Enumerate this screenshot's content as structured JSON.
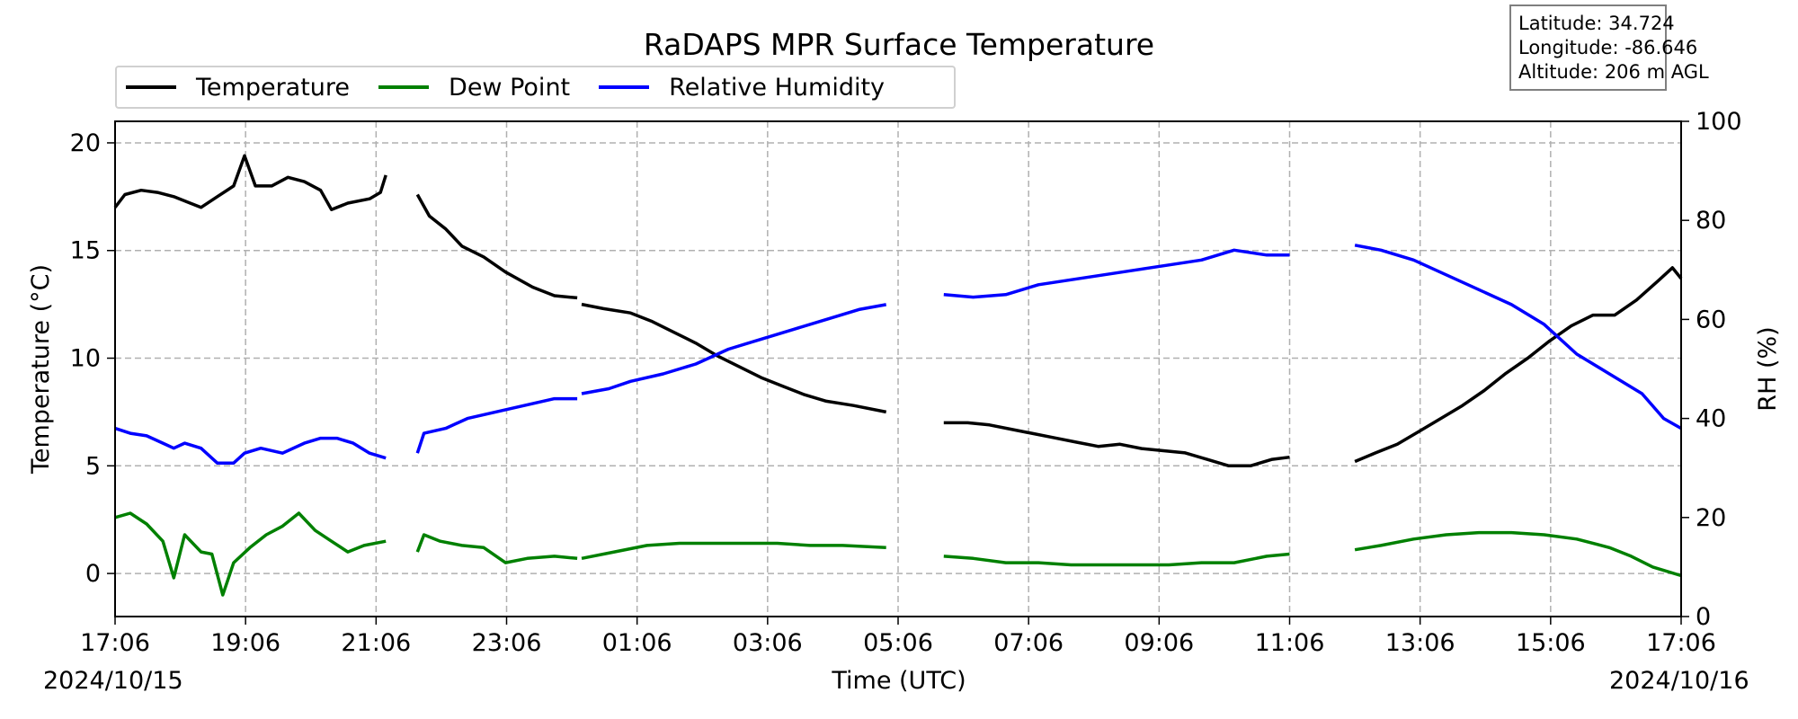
{
  "chart_data": {
    "type": "line",
    "title": "RaDAPS MPR Surface Temperature",
    "xlabel": "Time (UTC)",
    "ylabel_left": "Temperature (°C)",
    "ylabel_right": "RH (%)",
    "start_date": "2024/10/15",
    "end_date": "2024/10/16",
    "x_tick_labels": [
      "17:06",
      "19:06",
      "21:06",
      "23:06",
      "01:06",
      "03:06",
      "05:06",
      "07:06",
      "09:06",
      "11:06",
      "13:06",
      "15:06",
      "17:06"
    ],
    "xlim": [
      "2024/10/15 17:06",
      "2024/10/16 17:06"
    ],
    "ylim_left": [
      -2,
      21
    ],
    "ylim_right": [
      0,
      100
    ],
    "y_ticks_left": [
      "0",
      "5",
      "10",
      "15",
      "20"
    ],
    "y_ticks_right": [
      "0",
      "20",
      "40",
      "60",
      "80",
      "100"
    ],
    "grid": true,
    "legend_position": "top-left, above plot",
    "series": [
      {
        "name": "Temperature",
        "axis": "left",
        "color": "#000000",
        "segments": [
          [
            [
              "17:06",
              17.0
            ],
            [
              "17:15",
              17.6
            ],
            [
              "17:30",
              17.8
            ],
            [
              "17:45",
              17.7
            ],
            [
              "18:00",
              17.5
            ],
            [
              "18:15",
              17.2
            ],
            [
              "18:25",
              17.0
            ],
            [
              "18:40",
              17.5
            ],
            [
              "18:55",
              18.0
            ],
            [
              "19:05",
              19.4
            ],
            [
              "19:15",
              18.0
            ],
            [
              "19:30",
              18.0
            ],
            [
              "19:45",
              18.4
            ],
            [
              "20:00",
              18.2
            ],
            [
              "20:15",
              17.8
            ],
            [
              "20:25",
              16.9
            ],
            [
              "20:40",
              17.2
            ],
            [
              "21:00",
              17.4
            ],
            [
              "21:10",
              17.7
            ],
            [
              "21:15",
              18.5
            ]
          ],
          [
            [
              "21:44",
              17.6
            ],
            [
              "21:55",
              16.6
            ],
            [
              "22:10",
              16.0
            ],
            [
              "22:25",
              15.2
            ],
            [
              "22:45",
              14.7
            ],
            [
              "23:05",
              14.0
            ],
            [
              "23:30",
              13.3
            ],
            [
              "23:50",
              12.9
            ],
            [
              "00:11",
              12.8
            ]
          ],
          [
            [
              "00:15",
              12.5
            ],
            [
              "00:35",
              12.3
            ],
            [
              "01:00",
              12.1
            ],
            [
              "01:20",
              11.7
            ],
            [
              "01:40",
              11.2
            ],
            [
              "02:00",
              10.7
            ],
            [
              "02:20",
              10.1
            ],
            [
              "02:40",
              9.6
            ],
            [
              "03:00",
              9.1
            ],
            [
              "03:20",
              8.7
            ],
            [
              "03:40",
              8.3
            ],
            [
              "04:00",
              8.0
            ],
            [
              "04:25",
              7.8
            ],
            [
              "04:55",
              7.5
            ]
          ],
          [
            [
              "05:48",
              7.0
            ],
            [
              "06:10",
              7.0
            ],
            [
              "06:30",
              6.9
            ],
            [
              "06:50",
              6.7
            ],
            [
              "07:10",
              6.5
            ],
            [
              "07:30",
              6.3
            ],
            [
              "07:50",
              6.1
            ],
            [
              "08:10",
              5.9
            ],
            [
              "08:30",
              6.0
            ],
            [
              "08:50",
              5.8
            ],
            [
              "09:10",
              5.7
            ],
            [
              "09:30",
              5.6
            ],
            [
              "09:50",
              5.3
            ],
            [
              "10:10",
              5.0
            ],
            [
              "10:30",
              5.0
            ],
            [
              "10:50",
              5.3
            ],
            [
              "11:06",
              5.4
            ]
          ],
          [
            [
              "12:06",
              5.2
            ],
            [
              "12:25",
              5.6
            ],
            [
              "12:45",
              6.0
            ],
            [
              "13:05",
              6.6
            ],
            [
              "13:25",
              7.2
            ],
            [
              "13:45",
              7.8
            ],
            [
              "14:05",
              8.5
            ],
            [
              "14:25",
              9.3
            ],
            [
              "14:45",
              10.0
            ],
            [
              "15:05",
              10.8
            ],
            [
              "15:25",
              11.5
            ],
            [
              "15:45",
              12.0
            ],
            [
              "16:05",
              12.0
            ],
            [
              "16:25",
              12.7
            ],
            [
              "16:45",
              13.6
            ],
            [
              "16:58",
              14.2
            ],
            [
              "17:06",
              13.7
            ]
          ]
        ]
      },
      {
        "name": "Dew Point",
        "axis": "left",
        "color": "#008000",
        "segments": [
          [
            [
              "17:06",
              2.6
            ],
            [
              "17:20",
              2.8
            ],
            [
              "17:35",
              2.3
            ],
            [
              "17:50",
              1.5
            ],
            [
              "18:00",
              -0.2
            ],
            [
              "18:10",
              1.8
            ],
            [
              "18:25",
              1.0
            ],
            [
              "18:35",
              0.9
            ],
            [
              "18:45",
              -1.0
            ],
            [
              "18:55",
              0.5
            ],
            [
              "19:10",
              1.2
            ],
            [
              "19:25",
              1.8
            ],
            [
              "19:40",
              2.2
            ],
            [
              "19:55",
              2.8
            ],
            [
              "20:10",
              2.0
            ],
            [
              "20:25",
              1.5
            ],
            [
              "20:40",
              1.0
            ],
            [
              "20:55",
              1.3
            ],
            [
              "21:15",
              1.5
            ]
          ],
          [
            [
              "21:44",
              1.0
            ],
            [
              "21:50",
              1.8
            ],
            [
              "22:05",
              1.5
            ],
            [
              "22:25",
              1.3
            ],
            [
              "22:45",
              1.2
            ],
            [
              "23:05",
              0.5
            ],
            [
              "23:25",
              0.7
            ],
            [
              "23:50",
              0.8
            ],
            [
              "00:11",
              0.7
            ]
          ],
          [
            [
              "00:15",
              0.7
            ],
            [
              "00:45",
              1.0
            ],
            [
              "01:15",
              1.3
            ],
            [
              "01:45",
              1.4
            ],
            [
              "02:15",
              1.4
            ],
            [
              "02:45",
              1.4
            ],
            [
              "03:15",
              1.4
            ],
            [
              "03:45",
              1.3
            ],
            [
              "04:15",
              1.3
            ],
            [
              "04:55",
              1.2
            ]
          ],
          [
            [
              "05:48",
              0.8
            ],
            [
              "06:15",
              0.7
            ],
            [
              "06:45",
              0.5
            ],
            [
              "07:15",
              0.5
            ],
            [
              "07:45",
              0.4
            ],
            [
              "08:15",
              0.4
            ],
            [
              "08:45",
              0.4
            ],
            [
              "09:15",
              0.4
            ],
            [
              "09:45",
              0.5
            ],
            [
              "10:15",
              0.5
            ],
            [
              "10:45",
              0.8
            ],
            [
              "11:06",
              0.9
            ]
          ],
          [
            [
              "12:06",
              1.1
            ],
            [
              "12:30",
              1.3
            ],
            [
              "13:00",
              1.6
            ],
            [
              "13:30",
              1.8
            ],
            [
              "14:00",
              1.9
            ],
            [
              "14:30",
              1.9
            ],
            [
              "15:00",
              1.8
            ],
            [
              "15:30",
              1.6
            ],
            [
              "16:00",
              1.2
            ],
            [
              "16:20",
              0.8
            ],
            [
              "16:40",
              0.3
            ],
            [
              "17:06",
              -0.1
            ]
          ]
        ]
      },
      {
        "name": "Relative Humidity",
        "axis": "right",
        "color": "#0000ff",
        "segments": [
          [
            [
              "17:06",
              38
            ],
            [
              "17:20",
              37
            ],
            [
              "17:35",
              36.5
            ],
            [
              "17:50",
              35
            ],
            [
              "18:00",
              34
            ],
            [
              "18:10",
              35
            ],
            [
              "18:25",
              34
            ],
            [
              "18:40",
              31
            ],
            [
              "18:55",
              31
            ],
            [
              "19:05",
              33
            ],
            [
              "19:20",
              34
            ],
            [
              "19:40",
              33
            ],
            [
              "20:00",
              35
            ],
            [
              "20:15",
              36
            ],
            [
              "20:30",
              36
            ],
            [
              "20:45",
              35
            ],
            [
              "21:00",
              33
            ],
            [
              "21:15",
              32
            ]
          ],
          [
            [
              "21:44",
              33
            ],
            [
              "21:50",
              37
            ],
            [
              "22:10",
              38
            ],
            [
              "22:30",
              40
            ],
            [
              "22:50",
              41
            ],
            [
              "23:10",
              42
            ],
            [
              "23:30",
              43
            ],
            [
              "23:50",
              44
            ],
            [
              "00:11",
              44
            ]
          ],
          [
            [
              "00:15",
              45
            ],
            [
              "00:40",
              46
            ],
            [
              "01:00",
              47.5
            ],
            [
              "01:30",
              49
            ],
            [
              "02:00",
              51
            ],
            [
              "02:30",
              54
            ],
            [
              "03:00",
              56
            ],
            [
              "03:30",
              58
            ],
            [
              "04:00",
              60
            ],
            [
              "04:30",
              62
            ],
            [
              "04:55",
              63
            ]
          ],
          [
            [
              "05:48",
              65
            ],
            [
              "06:15",
              64.5
            ],
            [
              "06:45",
              65
            ],
            [
              "07:15",
              67
            ],
            [
              "07:45",
              68
            ],
            [
              "08:15",
              69
            ],
            [
              "08:45",
              70
            ],
            [
              "09:15",
              71
            ],
            [
              "09:45",
              72
            ],
            [
              "10:15",
              74
            ],
            [
              "10:45",
              73
            ],
            [
              "11:06",
              73
            ]
          ],
          [
            [
              "12:06",
              75
            ],
            [
              "12:30",
              74
            ],
            [
              "13:00",
              72
            ],
            [
              "13:30",
              69
            ],
            [
              "14:00",
              66
            ],
            [
              "14:30",
              63
            ],
            [
              "15:00",
              59
            ],
            [
              "15:30",
              53
            ],
            [
              "16:00",
              49
            ],
            [
              "16:30",
              45
            ],
            [
              "16:50",
              40
            ],
            [
              "17:06",
              38
            ]
          ]
        ]
      }
    ]
  },
  "info_box": {
    "latitude": "Latitude: 34.724",
    "longitude": "Longitude: -86.646",
    "altitude": "Altitude: 206 m AGL"
  }
}
